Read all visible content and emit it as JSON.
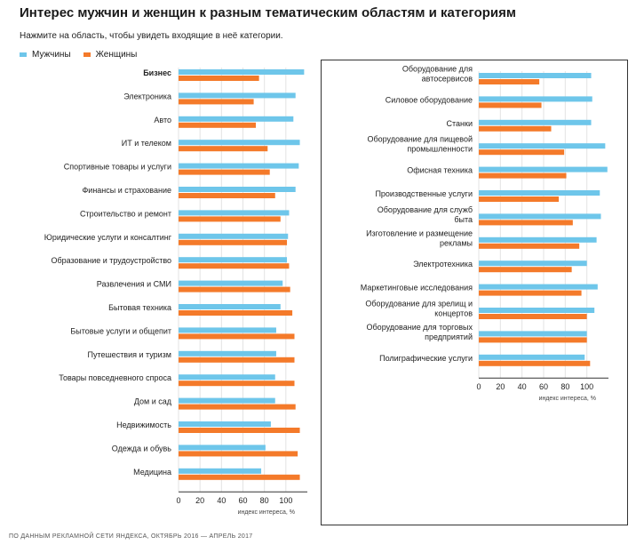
{
  "title": "Интерес мужчин и женщин к разным тематическим областям и категориям",
  "subtitle": "Нажмите на область, чтобы увидеть входящие в неё категории.",
  "footer": "ПО ДАННЫМ РЕКЛАМНОЙ СЕТИ ЯНДЕКСА, ОКТЯБРЬ 2016 — АПРЕЛЬ 2017",
  "colors": {
    "men": "#6ec6ea",
    "women": "#f47a2a",
    "grid": "#e3e3e3",
    "axis": "#333333"
  },
  "legend": [
    "Мужчины",
    "Женщины"
  ],
  "chart_data": [
    {
      "type": "bar",
      "orientation": "horizontal",
      "categories": [
        "Бизнес",
        "Электроника",
        "Авто",
        "ИТ и телеком",
        "Спортивные товары и услуги",
        "Финансы и страхование",
        "Строительство и ремонт",
        "Юридические услуги и консалтинг",
        "Образование и трудоустройство",
        "Развлечения и СМИ",
        "Бытовая техника",
        "Бытовые услуги и общепит",
        "Путешествия и туризм",
        "Товары повседневного спроса",
        "Дом и сад",
        "Недвижимость",
        "Одежда и обувь",
        "Медицина"
      ],
      "selected_category": "Бизнес",
      "series": [
        {
          "name": "Мужчины",
          "values": [
            117,
            109,
            107,
            113,
            112,
            109,
            103,
            102,
            101,
            97,
            95,
            91,
            91,
            90,
            90,
            86,
            81,
            77
          ]
        },
        {
          "name": "Женщины",
          "values": [
            75,
            70,
            72,
            83,
            85,
            90,
            95,
            101,
            103,
            104,
            106,
            108,
            108,
            108,
            109,
            113,
            111,
            113
          ]
        }
      ],
      "xticks": [
        "0",
        "20",
        "40",
        "60",
        "80",
        "100"
      ],
      "xlim": [
        0,
        120
      ],
      "xlabel": "индекс интереса, %",
      "grid": true
    },
    {
      "type": "bar",
      "orientation": "horizontal",
      "categories": [
        "Оборудование для автосервисов",
        "Силовое оборудование",
        "Станки",
        "Оборудование для пищевой промышленности",
        "Офисная техника",
        "Производственные услуги",
        "Оборудование для служб быта",
        "Изготовление и размещение рекламы",
        "Электротехника",
        "Маркетинговые исследования",
        "Оборудование для зрелищ и концертов",
        "Оборудование для торговых предприятий",
        "Полиграфические услуги"
      ],
      "series": [
        {
          "name": "Мужчины",
          "values": [
            104,
            105,
            104,
            117,
            119,
            112,
            113,
            109,
            100,
            110,
            107,
            100,
            98
          ]
        },
        {
          "name": "Женщины",
          "values": [
            56,
            58,
            67,
            79,
            81,
            74,
            87,
            93,
            86,
            95,
            100,
            100,
            103
          ]
        }
      ],
      "xticks": [
        "0",
        "20",
        "40",
        "60",
        "80",
        "100"
      ],
      "xlim": [
        0,
        120
      ],
      "xlabel": "индекс интереса, %",
      "grid": true
    }
  ]
}
